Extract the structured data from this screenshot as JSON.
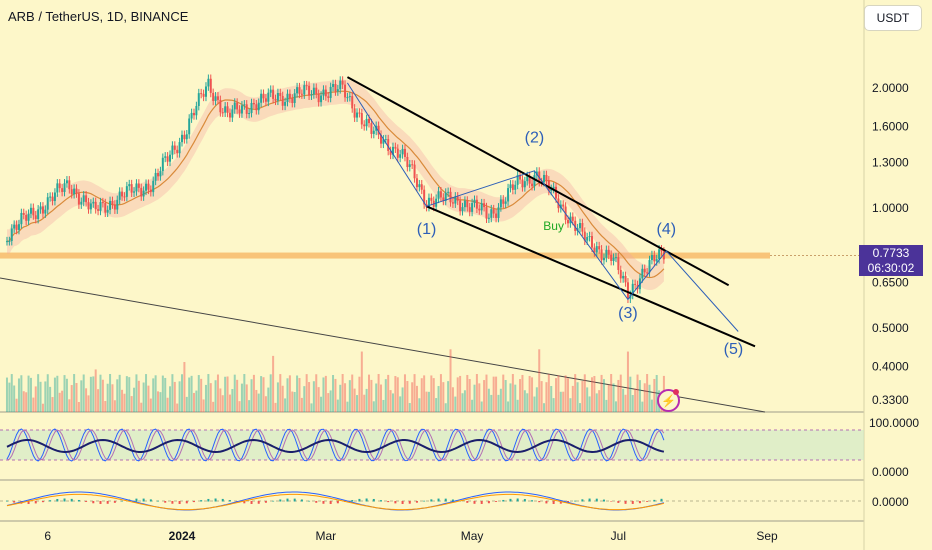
{
  "header": {
    "title": "ARB / TetherUS, 1D, BINANCE",
    "currency_button": "USDT"
  },
  "price_badge": {
    "price": "0.7733",
    "countdown": "06:30:02",
    "color": "#4b3399"
  },
  "alert_icon": "lightning-icon",
  "chart_data": {
    "type": "candlestick",
    "title": "ARB / TetherUS, 1D, BINANCE",
    "y_scale": "log",
    "y_ticks": [
      "2.0000",
      "1.6000",
      "1.3000",
      "1.0000",
      "0.6500",
      "0.5000",
      "0.4000",
      "0.3300"
    ],
    "y_ticks_values": [
      2.0,
      1.6,
      1.3,
      1.0,
      0.65,
      0.5,
      0.4,
      0.33
    ],
    "x_ticks": [
      "6",
      "2024",
      "Mar",
      "May",
      "Jul",
      "Sep"
    ],
    "x_ticks_dates": [
      "2023-11-06",
      "2024-01-01",
      "2024-03-01",
      "2024-05-01",
      "2024-07-01",
      "2024-09-01"
    ],
    "last_price": 0.7733,
    "close_path": [
      {
        "date": "2023-10-20",
        "price": 0.86
      },
      {
        "date": "2023-11-05",
        "price": 1.03
      },
      {
        "date": "2023-11-15",
        "price": 1.15
      },
      {
        "date": "2023-11-25",
        "price": 0.98
      },
      {
        "date": "2023-12-08",
        "price": 1.08
      },
      {
        "date": "2023-12-20",
        "price": 1.16
      },
      {
        "date": "2024-01-02",
        "price": 1.55
      },
      {
        "date": "2024-01-12",
        "price": 2.05
      },
      {
        "date": "2024-01-20",
        "price": 1.7
      },
      {
        "date": "2024-02-01",
        "price": 1.85
      },
      {
        "date": "2024-02-15",
        "price": 1.92
      },
      {
        "date": "2024-02-25",
        "price": 1.95
      },
      {
        "date": "2024-03-08",
        "price": 1.98
      },
      {
        "date": "2024-03-20",
        "price": 1.55
      },
      {
        "date": "2024-04-01",
        "price": 1.38
      },
      {
        "date": "2024-04-12",
        "price": 1.05
      },
      {
        "date": "2024-04-25",
        "price": 1.05
      },
      {
        "date": "2024-05-08",
        "price": 0.96
      },
      {
        "date": "2024-05-20",
        "price": 1.15
      },
      {
        "date": "2024-05-28",
        "price": 1.22
      },
      {
        "date": "2024-06-08",
        "price": 1.0
      },
      {
        "date": "2024-06-18",
        "price": 0.82
      },
      {
        "date": "2024-06-28",
        "price": 0.76
      },
      {
        "date": "2024-07-05",
        "price": 0.61
      },
      {
        "date": "2024-07-10",
        "price": 0.68
      },
      {
        "date": "2024-07-20",
        "price": 0.7733
      }
    ],
    "annotations": {
      "waves": [
        {
          "label": "(1)",
          "date": "2024-04-12",
          "price": 0.86
        },
        {
          "label": "(2)",
          "date": "2024-05-27",
          "price": 1.46
        },
        {
          "label": "(3)",
          "date": "2024-07-05",
          "price": 0.53
        },
        {
          "label": "(4)",
          "date": "2024-07-21",
          "price": 0.86
        },
        {
          "label": "(5)",
          "date": "2024-08-18",
          "price": 0.43
        }
      ],
      "buy_signal": {
        "label": "Buy",
        "date": "2024-06-04",
        "price": 0.88
      },
      "horizontal_level": 0.76,
      "channel_upper": [
        {
          "date": "2024-03-10",
          "price": 2.13
        },
        {
          "date": "2024-08-16",
          "price": 0.64
        }
      ],
      "channel_lower": [
        {
          "date": "2024-04-12",
          "price": 1.01
        },
        {
          "date": "2024-08-27",
          "price": 0.45
        }
      ]
    },
    "indicators": {
      "oscillator_ticks": [
        "100.0000",
        "0.0000"
      ],
      "macd_ticks": [
        "0.0000"
      ]
    },
    "colors": {
      "up": "#26a69a",
      "down": "#ef5350",
      "channel": "#000000",
      "wave": "#2d5fb8"
    }
  }
}
